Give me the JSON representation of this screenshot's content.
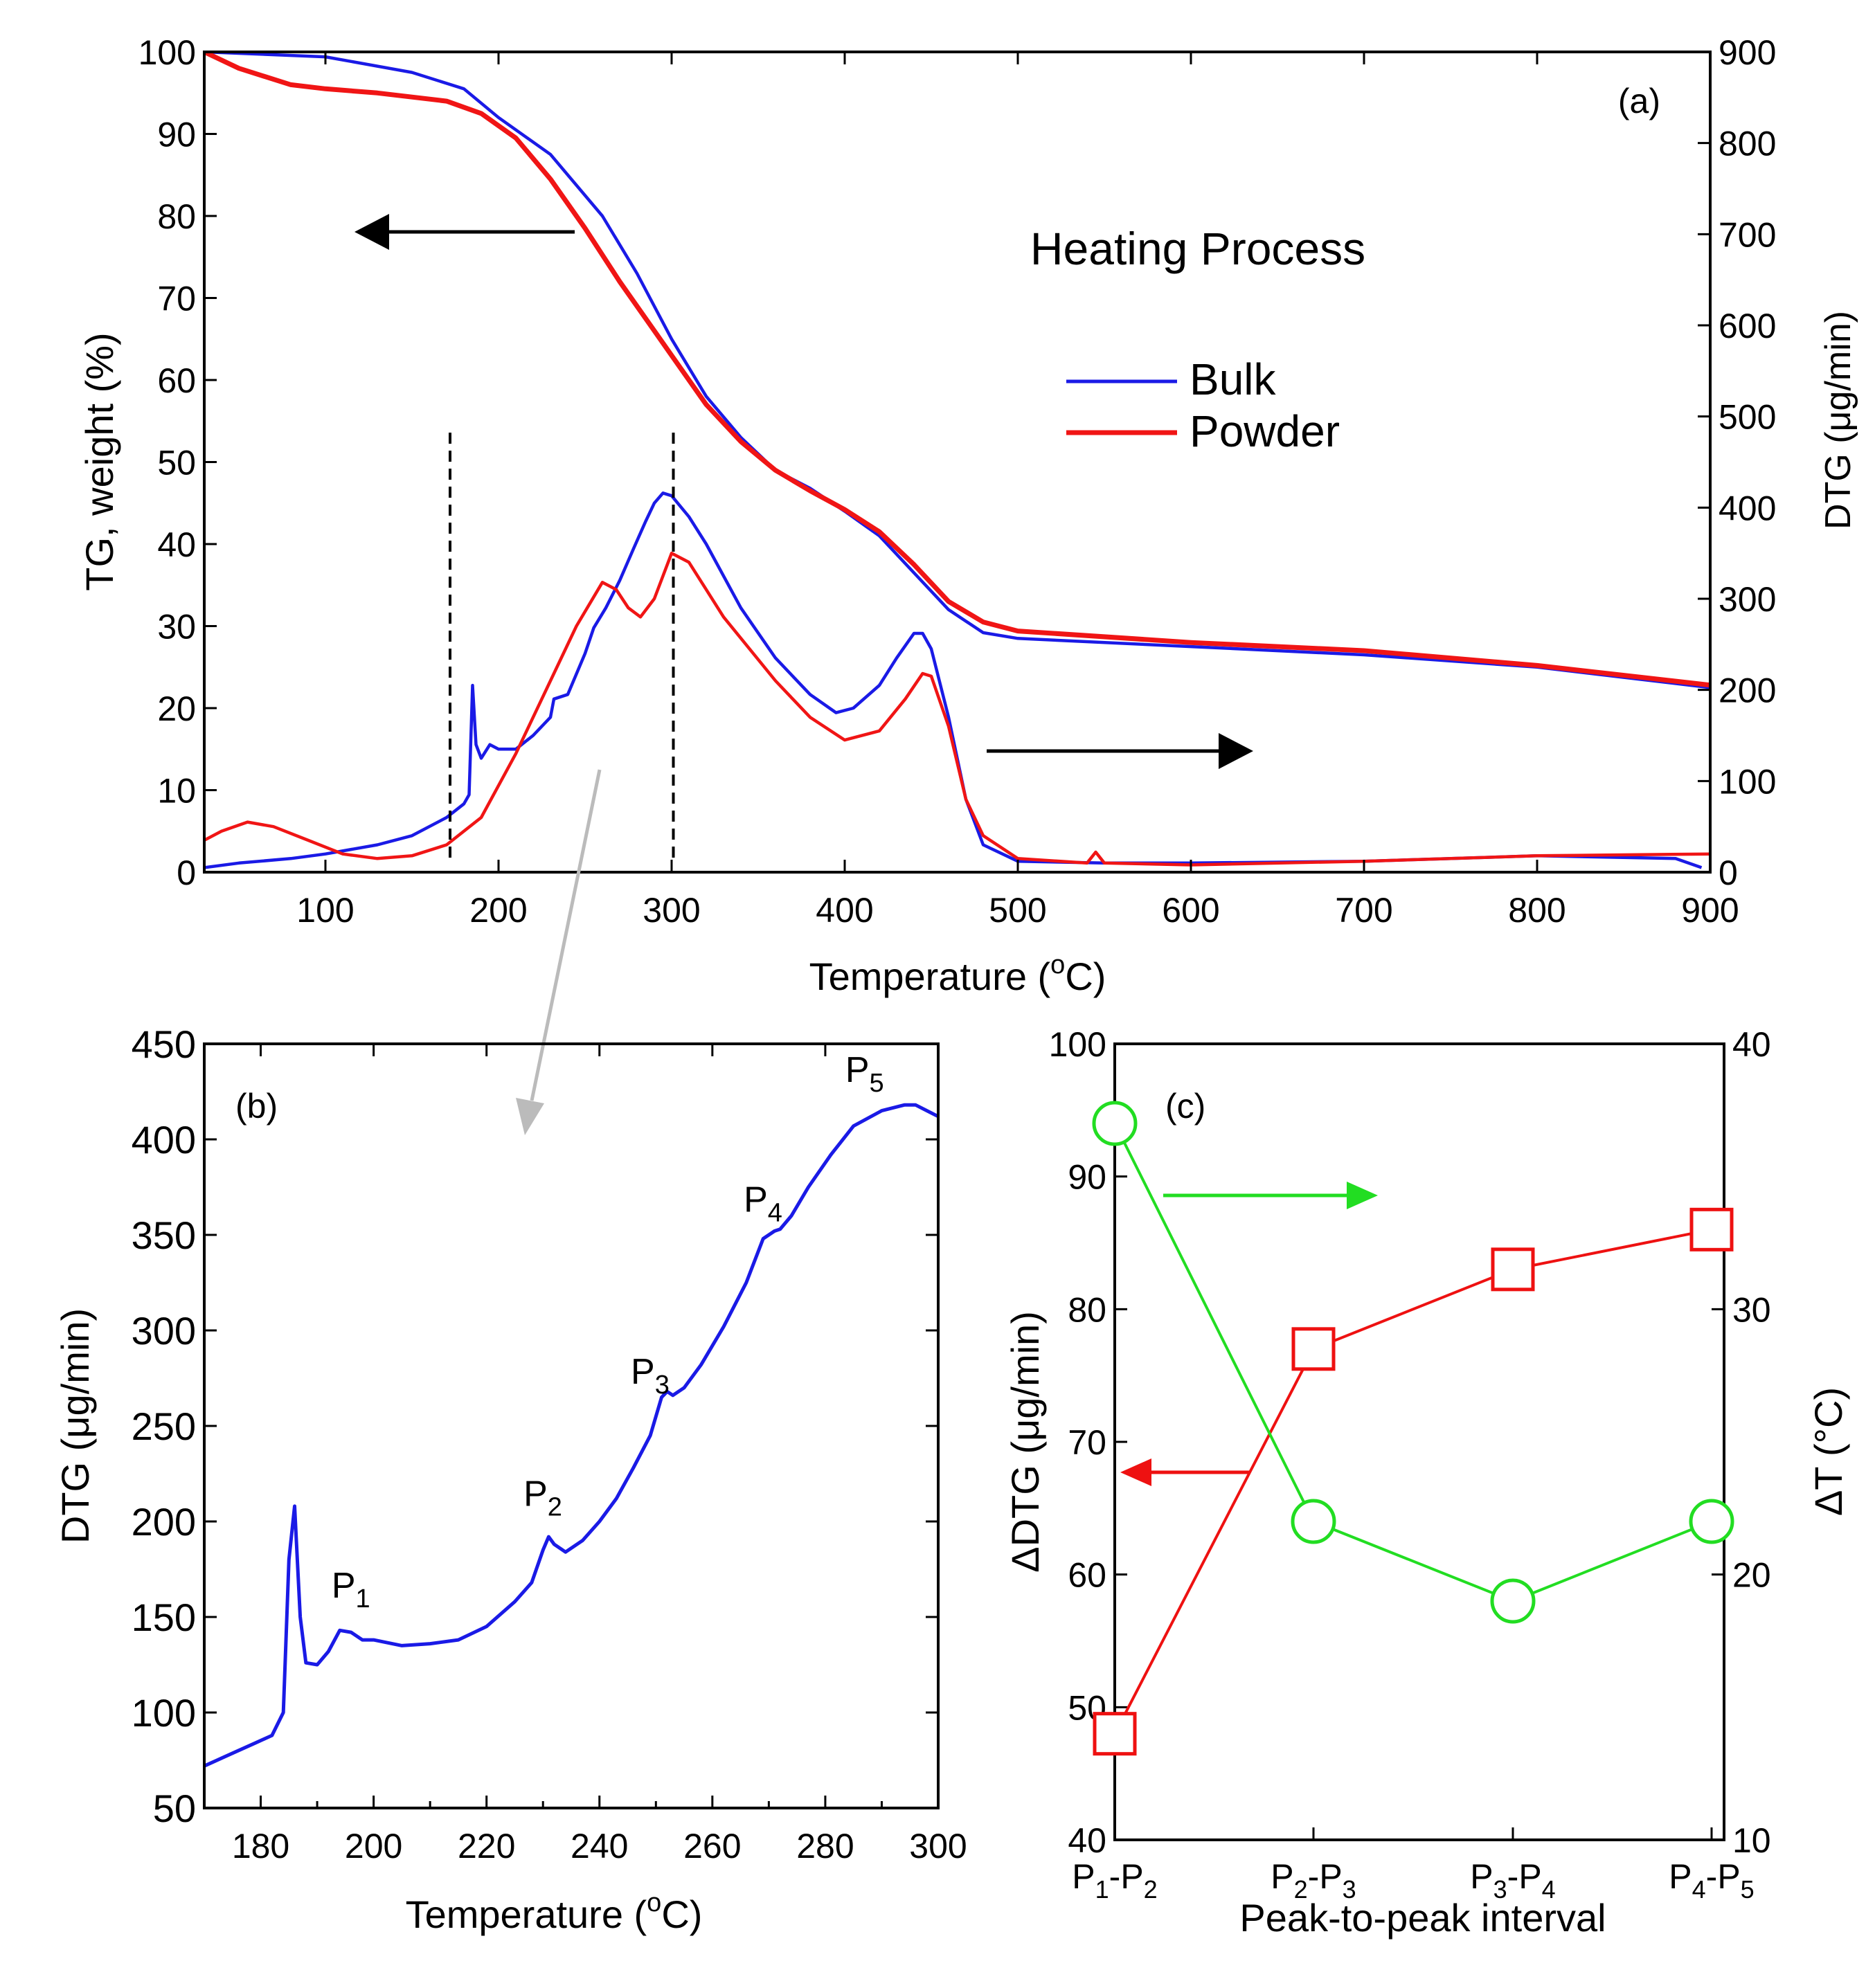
{
  "colors": {
    "bulk": "#1a1ae6",
    "powder": "#f01515",
    "green": "#22dd22",
    "red": "#ee1111",
    "gray": "#bbbbbb"
  },
  "chart_data": [
    {
      "id": "a",
      "panel_label": "(a)",
      "type": "line",
      "title": "Heating Process",
      "xlabel": "Temperature (°C)",
      "xlabel_parts": [
        "Temperature (",
        "o",
        "C)"
      ],
      "ylabel_left": "TG, weight (%)",
      "ylabel_right": "DTG (μg/min)",
      "xlim": [
        30,
        900
      ],
      "ylim_left": [
        0,
        100
      ],
      "ylim_right": [
        0,
        900
      ],
      "xticks": [
        100,
        200,
        300,
        400,
        500,
        600,
        700,
        800,
        900
      ],
      "yticks_left": [
        0,
        10,
        20,
        30,
        40,
        50,
        60,
        70,
        80,
        90,
        100
      ],
      "yticks_right": [
        0,
        100,
        200,
        300,
        400,
        500,
        600,
        700,
        800,
        900
      ],
      "legend": [
        {
          "name": "Bulk",
          "color": "#1a1ae6"
        },
        {
          "name": "Powder",
          "color": "#f01515"
        }
      ],
      "legend_position": "center-right",
      "dashed_lines_x": [
        172,
        301
      ],
      "annotations": [
        "arrow pointing left toward TG axis",
        "arrow pointing right toward DTG axis"
      ],
      "series": [
        {
          "name": "Bulk TG",
          "axis": "left",
          "color": "#1a1ae6",
          "x": [
            30,
            100,
            150,
            180,
            200,
            230,
            260,
            280,
            300,
            320,
            340,
            360,
            380,
            400,
            420,
            440,
            460,
            480,
            500,
            600,
            700,
            800,
            900
          ],
          "y": [
            100,
            99.4,
            97.5,
            95.5,
            92,
            87.5,
            80,
            73,
            65,
            58,
            53,
            49,
            46.8,
            44,
            41,
            36.5,
            32,
            29.2,
            28.5,
            27.5,
            26.5,
            25,
            22.5
          ]
        },
        {
          "name": "Powder TG",
          "axis": "left",
          "color": "#f01515",
          "x": [
            30,
            50,
            80,
            100,
            130,
            150,
            170,
            190,
            210,
            230,
            250,
            270,
            290,
            300,
            320,
            340,
            360,
            380,
            400,
            420,
            440,
            460,
            480,
            500,
            600,
            700,
            800,
            900
          ],
          "y": [
            100,
            98,
            96,
            95.5,
            95,
            94.5,
            94,
            92.5,
            89.5,
            84.5,
            78.5,
            72,
            66,
            63,
            57,
            52.5,
            49,
            46.5,
            44.2,
            41.5,
            37.5,
            33,
            30.5,
            29.4,
            28,
            27,
            25.2,
            22.8
          ]
        },
        {
          "name": "Bulk DTG",
          "axis": "right",
          "color": "#1a1ae6",
          "x": [
            30,
            50,
            80,
            100,
            130,
            150,
            170,
            180,
            183,
            185,
            187,
            190,
            195,
            200,
            210,
            220,
            230,
            232,
            240,
            250,
            255,
            262,
            270,
            278,
            285,
            290,
            295,
            300,
            310,
            320,
            340,
            360,
            380,
            395,
            405,
            420,
            430,
            440,
            445,
            450,
            460,
            470,
            480,
            500,
            550,
            600,
            700,
            800,
            880,
            895
          ],
          "y": [
            5,
            10,
            15,
            20,
            30,
            40,
            60,
            75,
            85,
            205,
            140,
            125,
            140,
            135,
            135,
            150,
            170,
            190,
            195,
            240,
            268,
            290,
            320,
            355,
            385,
            405,
            416,
            413,
            390,
            360,
            290,
            235,
            195,
            175,
            180,
            205,
            235,
            262,
            262,
            245,
            170,
            80,
            30,
            12,
            10,
            10,
            12,
            18,
            15,
            5
          ]
        },
        {
          "name": "Powder DTG",
          "axis": "right",
          "color": "#f01515",
          "x": [
            30,
            40,
            55,
            70,
            90,
            110,
            130,
            150,
            170,
            190,
            210,
            230,
            245,
            260,
            268,
            275,
            282,
            290,
            300,
            310,
            330,
            360,
            380,
            400,
            420,
            435,
            445,
            450,
            460,
            470,
            480,
            500,
            540,
            545,
            550,
            600,
            700,
            800,
            900
          ],
          "y": [
            35,
            45,
            55,
            50,
            35,
            20,
            15,
            18,
            30,
            60,
            130,
            210,
            270,
            318,
            310,
            290,
            280,
            300,
            350,
            340,
            280,
            210,
            170,
            145,
            155,
            190,
            218,
            215,
            160,
            80,
            40,
            15,
            10,
            22,
            10,
            8,
            12,
            18,
            20
          ]
        }
      ]
    },
    {
      "id": "b",
      "panel_label": "(b)",
      "type": "line",
      "xlabel": "Temperature (°C)",
      "xlabel_parts": [
        "Temperature (",
        "o",
        "C)"
      ],
      "ylabel": "DTG (μg/min)",
      "xlim": [
        170,
        300
      ],
      "ylim": [
        50,
        450
      ],
      "xticks": [
        180,
        200,
        220,
        240,
        260,
        280,
        300
      ],
      "yticks": [
        50,
        100,
        150,
        200,
        250,
        300,
        350,
        400,
        450
      ],
      "peak_labels": [
        {
          "base": "P",
          "sub": "1",
          "x": 195,
          "y": 150
        },
        {
          "base": "P",
          "sub": "2",
          "x": 229,
          "y": 198
        },
        {
          "base": "P",
          "sub": "3",
          "x": 248,
          "y": 262
        },
        {
          "base": "P",
          "sub": "4",
          "x": 268,
          "y": 352
        },
        {
          "base": "P",
          "sub": "5",
          "x": 286,
          "y": 420
        }
      ],
      "series": [
        {
          "name": "Bulk DTG",
          "color": "#1a1ae6",
          "x": [
            170,
            173,
            176,
            179,
            182,
            184,
            185,
            186,
            187,
            188,
            190,
            192,
            194,
            196,
            198,
            200,
            205,
            210,
            215,
            220,
            225,
            228,
            230,
            231,
            232,
            234,
            237,
            240,
            243,
            246,
            249,
            251,
            252,
            253,
            255,
            258,
            262,
            266,
            269,
            271,
            272,
            274,
            277,
            281,
            285,
            290,
            294,
            296,
            298,
            300
          ],
          "y": [
            72,
            76,
            80,
            84,
            88,
            100,
            180,
            208,
            150,
            126,
            125,
            132,
            143,
            142,
            138,
            138,
            135,
            136,
            138,
            145,
            158,
            168,
            185,
            192,
            188,
            184,
            190,
            200,
            212,
            228,
            245,
            265,
            268,
            266,
            270,
            282,
            302,
            325,
            348,
            352,
            353,
            360,
            375,
            392,
            407,
            415,
            418,
            418,
            415,
            412
          ]
        }
      ]
    },
    {
      "id": "c",
      "panel_label": "(c)",
      "type": "line",
      "xlabel": "Peak-to-peak interval",
      "ylabel_left": "ΔDTG (μg/min)",
      "ylabel_right": "ΔT (°C)",
      "ylim_left": [
        40,
        100
      ],
      "ylim_right": [
        10,
        40
      ],
      "yticks_left": [
        40,
        50,
        60,
        70,
        80,
        90,
        100
      ],
      "yticks_right": [
        10,
        20,
        30,
        40
      ],
      "categories": [
        {
          "a": "P",
          "a_sub": "1",
          "b": "P",
          "b_sub": "2"
        },
        {
          "a": "P",
          "a_sub": "2",
          "b": "P",
          "b_sub": "3"
        },
        {
          "a": "P",
          "a_sub": "3",
          "b": "P",
          "b_sub": "4"
        },
        {
          "a": "P",
          "a_sub": "4",
          "b": "P",
          "b_sub": "5"
        }
      ],
      "series": [
        {
          "name": "ΔDTG",
          "axis": "left",
          "marker": "square",
          "color": "#ee1111",
          "values": [
            48,
            77,
            83,
            86
          ]
        },
        {
          "name": "ΔT",
          "axis": "right",
          "marker": "circle",
          "color": "#22dd22",
          "values": [
            37,
            22,
            19,
            22
          ]
        }
      ]
    }
  ]
}
